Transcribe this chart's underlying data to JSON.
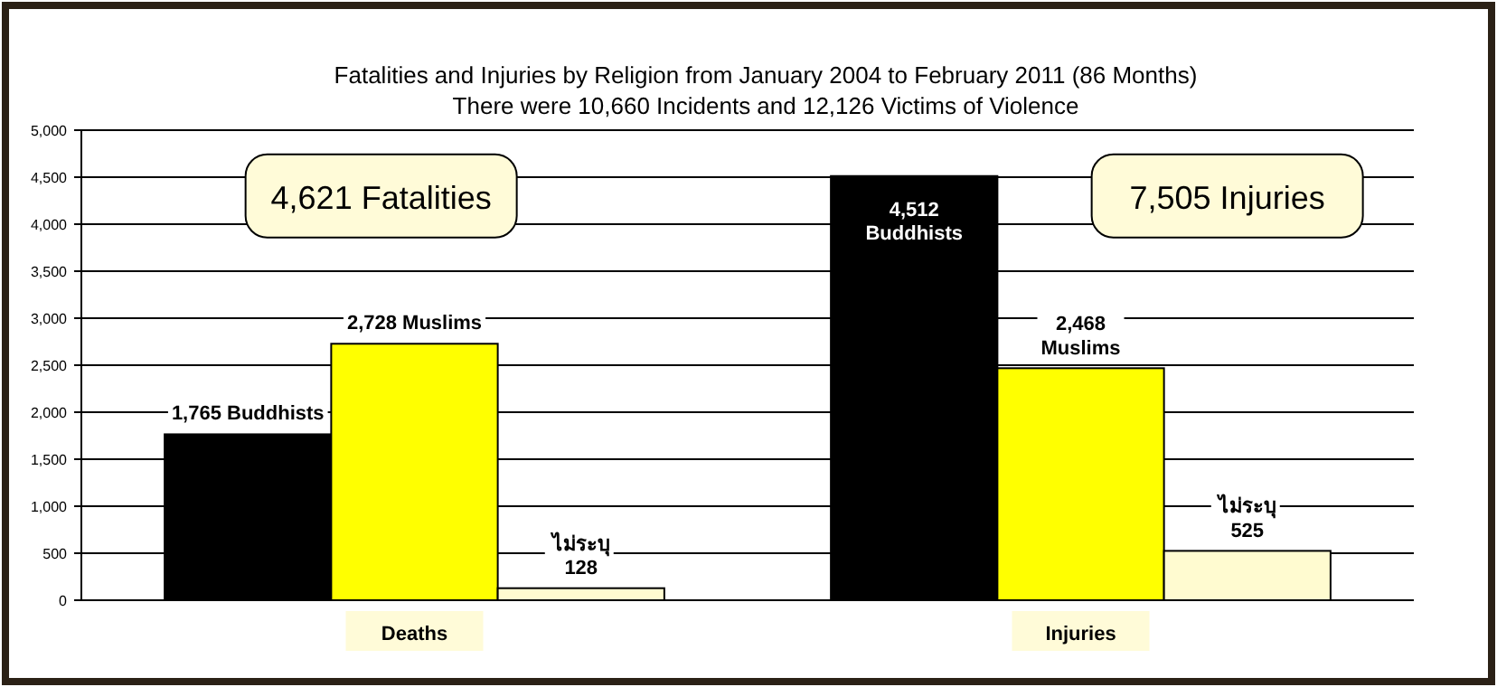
{
  "chart_data": {
    "type": "bar",
    "title": "Fatalities and Injuries by Religion from January 2004 to February 2011 (86 Months)",
    "subtitle": "There were 10,660 Incidents and 12,126 Victims of Violence",
    "categories": [
      "Deaths",
      "Injuries"
    ],
    "series": [
      {
        "color": "#000000",
        "values": [
          1765,
          4512
        ],
        "value_labels": [
          "1,765 Buddhists",
          "4,512\nBuddhists"
        ]
      },
      {
        "color": "#ffff00",
        "values": [
          2728,
          2468
        ],
        "value_labels": [
          "2,728 Muslims",
          "2,468\nMuslims"
        ]
      },
      {
        "color": "#fffbd0",
        "values": [
          128,
          525
        ],
        "value_labels": [
          "ไม่ระบุ\n128",
          "ไม่ระบุ\n525"
        ]
      }
    ],
    "annotations": [
      "4,621 Fatalities",
      "7,505 Injuries"
    ],
    "ylim": [
      0,
      5000
    ],
    "yticks": [
      0,
      {
        "value": 500,
        "label": "500"
      },
      {
        "value": 1000,
        "label": "1,000"
      },
      {
        "value": 1500,
        "label": "1,500"
      },
      {
        "value": 2000,
        "label": "2,000"
      },
      {
        "value": 2500,
        "label": "2,500"
      },
      {
        "value": 3000,
        "label": "3,000"
      },
      {
        "value": 3500,
        "label": "3,500"
      },
      {
        "value": 4000,
        "label": "4,000"
      },
      {
        "value": 4500,
        "label": "4,500"
      },
      {
        "value": 5000,
        "label": "5,000"
      }
    ],
    "grid": "y"
  }
}
